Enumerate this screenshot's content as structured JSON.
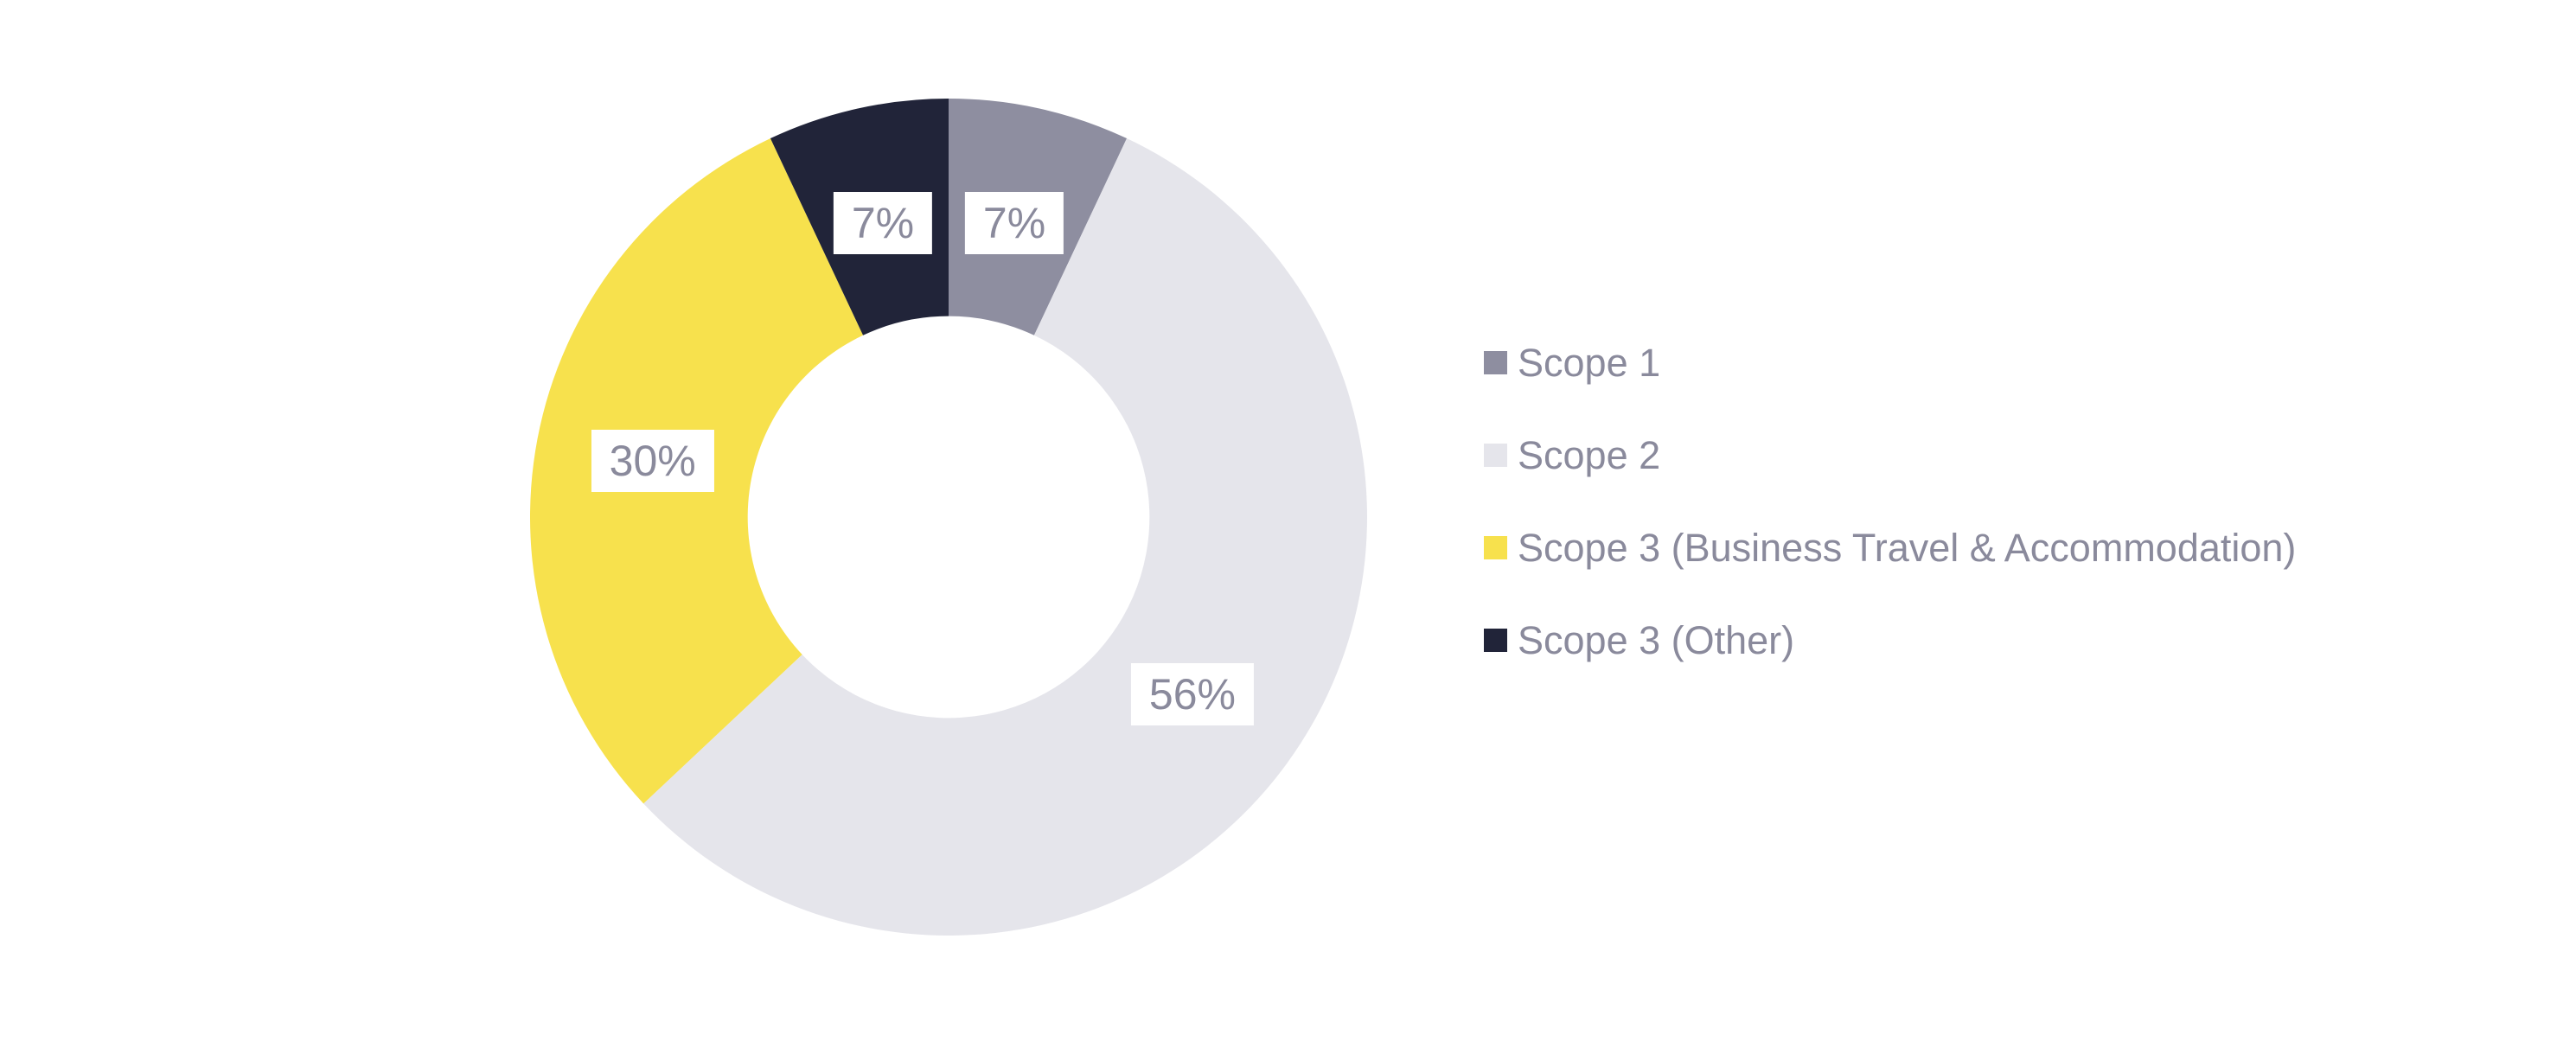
{
  "chart_data": {
    "type": "pie",
    "variant": "donut",
    "title": "",
    "series": [
      {
        "label": "Scope 1",
        "value": 7,
        "display": "7%",
        "color": "#8E8EA0"
      },
      {
        "label": "Scope 2",
        "value": 56,
        "display": "56%",
        "color": "#E5E5EB"
      },
      {
        "label": "Scope 3 (Business Travel & Accommodation)",
        "value": 30,
        "display": "30%",
        "color": "#F7E14D"
      },
      {
        "label": "Scope 3 (Other)",
        "value": 7,
        "display": "7%",
        "color": "#212439"
      }
    ],
    "start_angle_deg": 0,
    "direction": "clockwise",
    "inner_radius_ratio": 0.48,
    "label_radius_ratio": 0.72,
    "legend_position": "right",
    "background_color": "#FFFFFF",
    "data_label_text_color": "#8A8A9C",
    "data_label_box_color": "#FFFFFF"
  },
  "legend": {
    "text_color": "#8A8A9C",
    "items": [
      {
        "label": "Scope 1",
        "color": "#8E8EA0"
      },
      {
        "label": "Scope 2",
        "color": "#E5E5EB"
      },
      {
        "label": "Scope 3 (Business Travel & Accommodation)",
        "color": "#F7E14D"
      },
      {
        "label": "Scope 3 (Other)",
        "color": "#212439"
      }
    ]
  }
}
